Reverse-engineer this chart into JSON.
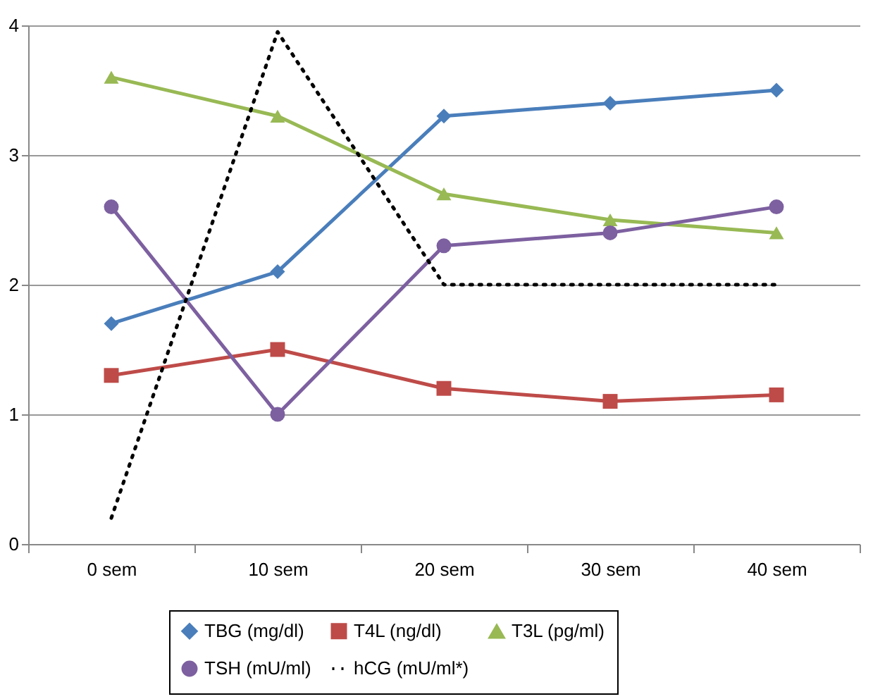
{
  "chart_data": {
    "type": "line",
    "categories": [
      "0 sem",
      "10 sem",
      "20 sem",
      "30 sem",
      "40 sem"
    ],
    "ylim": [
      0,
      4
    ],
    "yticks": [
      {
        "value": 0,
        "label": "0"
      },
      {
        "value": 1,
        "label": "1"
      },
      {
        "value": 2,
        "label": "2"
      },
      {
        "value": 3,
        "label": "3"
      },
      {
        "value": 4,
        "label": "4"
      }
    ],
    "grid": "y",
    "legend": "bottom",
    "series": [
      {
        "name": "TBG (mg/dl)",
        "color": "#4a7ebb",
        "marker": "diamond",
        "line_style": "solid",
        "values": [
          1.7,
          2.1,
          3.3,
          3.4,
          3.5
        ]
      },
      {
        "name": "T4L (ng/dl)",
        "color": "#be4b48",
        "marker": "square",
        "line_style": "solid",
        "values": [
          1.3,
          1.5,
          1.2,
          1.1,
          1.15
        ]
      },
      {
        "name": "T3L (pg/ml)",
        "color": "#98b954",
        "marker": "triangle",
        "line_style": "solid",
        "values": [
          3.6,
          3.3,
          2.7,
          2.5,
          2.4
        ]
      },
      {
        "name": "TSH (mU/ml)",
        "color": "#7d60a0",
        "marker": "circle",
        "line_style": "solid",
        "values": [
          2.6,
          1.0,
          2.3,
          2.4,
          2.6
        ]
      },
      {
        "name": "hCG (mU/ml*)",
        "color": "#000000",
        "marker": "none",
        "line_style": "dotted",
        "values": [
          0.2,
          3.95,
          2.0,
          2.0,
          2.0
        ]
      }
    ]
  }
}
